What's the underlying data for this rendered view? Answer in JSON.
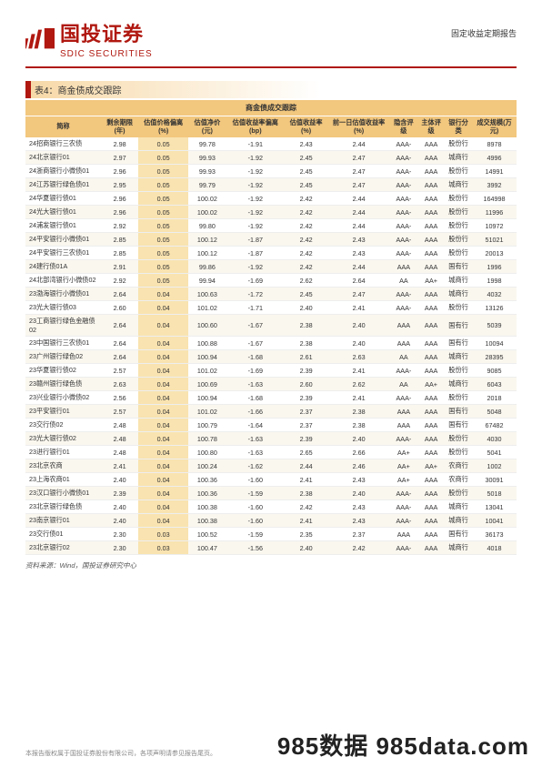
{
  "header": {
    "logo_text": "国投证券",
    "logo_sub": "SDIC SECURITIES",
    "report_type": "固定收益定期报告"
  },
  "table": {
    "caption": "表4：商金债成交跟踪",
    "title_row": "商金债成交跟踪",
    "columns": [
      "简称",
      "剩余期限(年)",
      "估值价格偏离(%)",
      "估值净价(元)",
      "估值收益率偏离(bp)",
      "估值收益率(%)",
      "前一日估值收益率(%)",
      "隐含评级",
      "主体评级",
      "银行分类",
      "成交规模(万元)"
    ],
    "rows": [
      [
        "24招商银行三农债",
        "2.98",
        "0.05",
        "99.78",
        "-1.91",
        "2.43",
        "2.44",
        "AAA-",
        "AAA",
        "股份行",
        "8978"
      ],
      [
        "24北京银行01",
        "2.97",
        "0.05",
        "99.93",
        "-1.92",
        "2.45",
        "2.47",
        "AAA-",
        "AAA",
        "城商行",
        "4996"
      ],
      [
        "24浙商银行小微债01",
        "2.96",
        "0.05",
        "99.93",
        "-1.92",
        "2.45",
        "2.47",
        "AAA-",
        "AAA",
        "股份行",
        "14991"
      ],
      [
        "24江苏银行绿色债01",
        "2.95",
        "0.05",
        "99.79",
        "-1.92",
        "2.45",
        "2.47",
        "AAA-",
        "AAA",
        "城商行",
        "3992"
      ],
      [
        "24华夏银行债01",
        "2.96",
        "0.05",
        "100.02",
        "-1.92",
        "2.42",
        "2.44",
        "AAA-",
        "AAA",
        "股份行",
        "164998"
      ],
      [
        "24光大银行债01",
        "2.96",
        "0.05",
        "100.02",
        "-1.92",
        "2.42",
        "2.44",
        "AAA-",
        "AAA",
        "股份行",
        "11996"
      ],
      [
        "24浦发银行债01",
        "2.92",
        "0.05",
        "99.80",
        "-1.92",
        "2.42",
        "2.44",
        "AAA-",
        "AAA",
        "股份行",
        "10972"
      ],
      [
        "24平安银行小微债01",
        "2.85",
        "0.05",
        "100.12",
        "-1.87",
        "2.42",
        "2.43",
        "AAA-",
        "AAA",
        "股份行",
        "51021"
      ],
      [
        "24平安银行三农债01",
        "2.85",
        "0.05",
        "100.12",
        "-1.87",
        "2.42",
        "2.43",
        "AAA-",
        "AAA",
        "股份行",
        "20013"
      ],
      [
        "24建行债01A",
        "2.91",
        "0.05",
        "99.86",
        "-1.92",
        "2.42",
        "2.44",
        "AAA",
        "AAA",
        "国有行",
        "1996"
      ],
      [
        "24北部湾银行小微债02",
        "2.92",
        "0.05",
        "99.94",
        "-1.69",
        "2.62",
        "2.64",
        "AA",
        "AA+",
        "城商行",
        "1998"
      ],
      [
        "23渤海银行小微债01",
        "2.64",
        "0.04",
        "100.63",
        "-1.72",
        "2.45",
        "2.47",
        "AAA-",
        "AAA",
        "城商行",
        "4032"
      ],
      [
        "23光大银行债03",
        "2.60",
        "0.04",
        "101.02",
        "-1.71",
        "2.40",
        "2.41",
        "AAA-",
        "AAA",
        "股份行",
        "13126"
      ],
      [
        "23工商银行绿色金融债02",
        "2.64",
        "0.04",
        "100.60",
        "-1.67",
        "2.38",
        "2.40",
        "AAA",
        "AAA",
        "国有行",
        "5039"
      ],
      [
        "23中国银行三农债01",
        "2.64",
        "0.04",
        "100.88",
        "-1.67",
        "2.38",
        "2.40",
        "AAA",
        "AAA",
        "国有行",
        "10094"
      ],
      [
        "23广州银行绿色02",
        "2.64",
        "0.04",
        "100.94",
        "-1.68",
        "2.61",
        "2.63",
        "AA",
        "AAA",
        "城商行",
        "28395"
      ],
      [
        "23华夏银行债02",
        "2.57",
        "0.04",
        "101.02",
        "-1.69",
        "2.39",
        "2.41",
        "AAA-",
        "AAA",
        "股份行",
        "9085"
      ],
      [
        "23赣州银行绿色债",
        "2.63",
        "0.04",
        "100.69",
        "-1.63",
        "2.60",
        "2.62",
        "AA",
        "AA+",
        "城商行",
        "6043"
      ],
      [
        "23兴业银行小微债02",
        "2.56",
        "0.04",
        "100.94",
        "-1.68",
        "2.39",
        "2.41",
        "AAA-",
        "AAA",
        "股份行",
        "2018"
      ],
      [
        "23平安银行01",
        "2.57",
        "0.04",
        "101.02",
        "-1.66",
        "2.37",
        "2.38",
        "AAA",
        "AAA",
        "国有行",
        "5048"
      ],
      [
        "23交行债02",
        "2.48",
        "0.04",
        "100.79",
        "-1.64",
        "2.37",
        "2.38",
        "AAA",
        "AAA",
        "国有行",
        "67482"
      ],
      [
        "23光大银行债02",
        "2.48",
        "0.04",
        "100.78",
        "-1.63",
        "2.39",
        "2.40",
        "AAA-",
        "AAA",
        "股份行",
        "4030"
      ],
      [
        "23进行银行01",
        "2.48",
        "0.04",
        "100.80",
        "-1.63",
        "2.65",
        "2.66",
        "AA+",
        "AAA",
        "股份行",
        "5041"
      ],
      [
        "23北京农商",
        "2.41",
        "0.04",
        "100.24",
        "-1.62",
        "2.44",
        "2.46",
        "AA+",
        "AA+",
        "农商行",
        "1002"
      ],
      [
        "23上海农商01",
        "2.40",
        "0.04",
        "100.36",
        "-1.60",
        "2.41",
        "2.43",
        "AA+",
        "AAA",
        "农商行",
        "30091"
      ],
      [
        "23汉口银行小微债01",
        "2.39",
        "0.04",
        "100.36",
        "-1.59",
        "2.38",
        "2.40",
        "AAA-",
        "AAA",
        "股份行",
        "5018"
      ],
      [
        "23北京银行绿色债",
        "2.40",
        "0.04",
        "100.38",
        "-1.60",
        "2.42",
        "2.43",
        "AAA-",
        "AAA",
        "城商行",
        "13041"
      ],
      [
        "23南京银行01",
        "2.40",
        "0.04",
        "100.38",
        "-1.60",
        "2.41",
        "2.43",
        "AAA-",
        "AAA",
        "城商行",
        "10041"
      ],
      [
        "23交行债01",
        "2.30",
        "0.03",
        "100.52",
        "-1.59",
        "2.35",
        "2.37",
        "AAA",
        "AAA",
        "国有行",
        "36173"
      ],
      [
        "23北京银行02",
        "2.30",
        "0.03",
        "100.47",
        "-1.56",
        "2.40",
        "2.42",
        "AAA-",
        "AAA",
        "城商行",
        "4018"
      ]
    ],
    "source": "资料来源：Wind，国投证券研究中心"
  },
  "footer": {
    "copyright": "本报告版权属于国投证券股份有限公司，各项声明请参见报告尾页。"
  },
  "watermark": "985数据  985data.com"
}
